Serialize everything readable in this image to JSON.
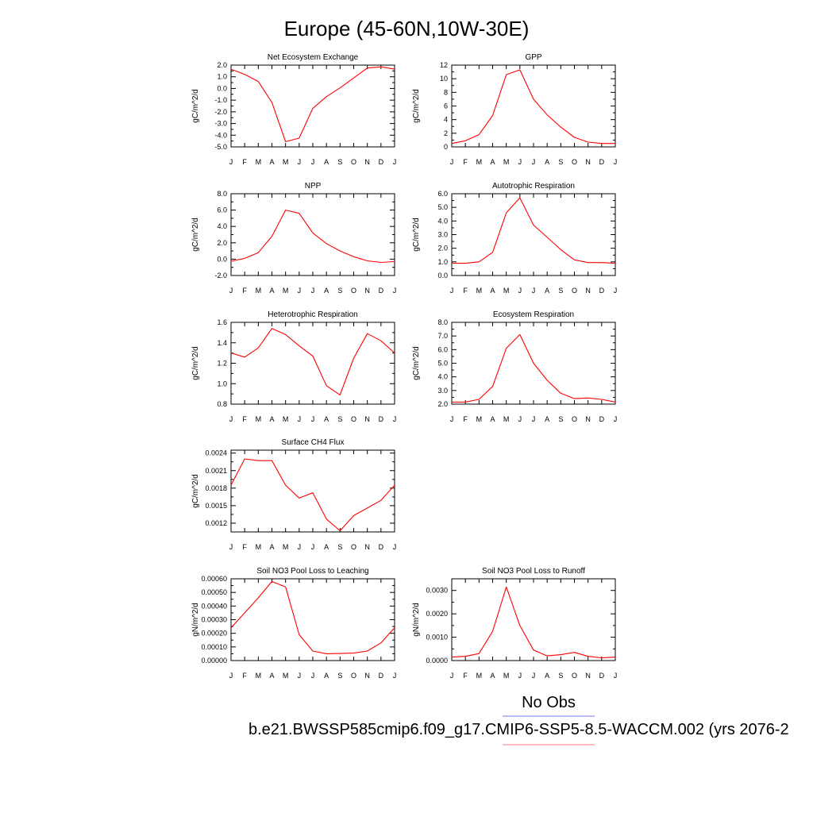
{
  "figure": {
    "title": "Europe (45-60N,10W-30E)",
    "legend": {
      "obs_label": "No Obs",
      "obs_color": "#7777ee",
      "model_label": "b.e21.BWSSP585cmip6.f09_g17.CMIP6-SSP5-8.5-WACCM.002 (yrs 2076-2",
      "model_color": "#ff7777"
    },
    "series_color": "#ff0000"
  },
  "chart_data": [
    {
      "type": "line",
      "title": "Net Ecosystem Exchange",
      "ylabel": "gC/m^2/d",
      "x": [
        "J",
        "F",
        "M",
        "A",
        "M",
        "J",
        "J",
        "A",
        "S",
        "O",
        "N",
        "D",
        "J"
      ],
      "ylim": [
        -5.0,
        2.0
      ],
      "yticks": [
        "2.0",
        "1.0",
        "0.0",
        "-1.0",
        "-2.0",
        "-3.0",
        "-4.0",
        "-5.0"
      ],
      "values": [
        1.65,
        1.2,
        0.6,
        -1.2,
        -4.55,
        -4.25,
        -1.7,
        -0.7,
        0.05,
        0.9,
        1.75,
        1.85,
        1.65
      ]
    },
    {
      "type": "line",
      "title": "GPP",
      "ylabel": "gC/m^2/d",
      "x": [
        "J",
        "F",
        "M",
        "A",
        "M",
        "J",
        "J",
        "A",
        "S",
        "O",
        "N",
        "D",
        "J"
      ],
      "ylim": [
        0,
        12
      ],
      "yticks": [
        "12",
        "10",
        "8",
        "6",
        "4",
        "2",
        "0"
      ],
      "values": [
        0.5,
        0.9,
        1.8,
        4.6,
        10.6,
        11.3,
        7.0,
        4.7,
        2.9,
        1.4,
        0.7,
        0.5,
        0.5
      ]
    },
    {
      "type": "line",
      "title": "NPP",
      "ylabel": "gC/m^2/d",
      "x": [
        "J",
        "F",
        "M",
        "A",
        "M",
        "J",
        "J",
        "A",
        "S",
        "O",
        "N",
        "D",
        "J"
      ],
      "ylim": [
        -2.0,
        8.0
      ],
      "yticks": [
        "8.0",
        "6.0",
        "4.0",
        "2.0",
        "0.0",
        "-2.0"
      ],
      "values": [
        -0.25,
        0.1,
        0.8,
        2.8,
        6.0,
        5.6,
        3.2,
        1.9,
        1.0,
        0.3,
        -0.2,
        -0.4,
        -0.3
      ]
    },
    {
      "type": "line",
      "title": "Autotrophic Respiration",
      "ylabel": "gC/m^2/d",
      "x": [
        "J",
        "F",
        "M",
        "A",
        "M",
        "J",
        "J",
        "A",
        "S",
        "O",
        "N",
        "D",
        "J"
      ],
      "ylim": [
        0.0,
        6.0
      ],
      "yticks": [
        "6.0",
        "5.0",
        "4.0",
        "3.0",
        "2.0",
        "1.0",
        "0.0"
      ],
      "values": [
        0.9,
        0.9,
        1.0,
        1.7,
        4.6,
        5.7,
        3.7,
        2.8,
        1.9,
        1.15,
        0.95,
        0.95,
        0.9
      ]
    },
    {
      "type": "line",
      "title": "Heterotrophic Respiration",
      "ylabel": "gC/m^2/d",
      "x": [
        "J",
        "F",
        "M",
        "A",
        "M",
        "J",
        "J",
        "A",
        "S",
        "O",
        "N",
        "D",
        "J"
      ],
      "ylim": [
        0.8,
        1.6
      ],
      "yticks": [
        "1.6",
        "1.4",
        "1.2",
        "1.0",
        "0.8"
      ],
      "values": [
        1.3,
        1.26,
        1.35,
        1.54,
        1.48,
        1.37,
        1.27,
        0.98,
        0.89,
        1.25,
        1.49,
        1.42,
        1.3
      ]
    },
    {
      "type": "line",
      "title": "Ecosystem Respiration",
      "ylabel": "gC/m^2/d",
      "x": [
        "J",
        "F",
        "M",
        "A",
        "M",
        "J",
        "J",
        "A",
        "S",
        "O",
        "N",
        "D",
        "J"
      ],
      "ylim": [
        2.0,
        8.0
      ],
      "yticks": [
        "8.0",
        "7.0",
        "6.0",
        "5.0",
        "4.0",
        "3.0",
        "2.0"
      ],
      "values": [
        2.15,
        2.15,
        2.35,
        3.3,
        6.1,
        7.1,
        5.0,
        3.75,
        2.8,
        2.4,
        2.45,
        2.35,
        2.15
      ]
    },
    {
      "type": "line",
      "title": "Surface CH4 Flux",
      "ylabel": "gC/m^2/d",
      "x": [
        "J",
        "F",
        "M",
        "A",
        "M",
        "J",
        "J",
        "A",
        "S",
        "O",
        "N",
        "D",
        "J"
      ],
      "ylim": [
        0.00105,
        0.00245
      ],
      "yticks": [
        "0.0024",
        "0.0021",
        "0.0018",
        "0.0015",
        "0.0012"
      ],
      "ytick_values": [
        0.0024,
        0.0021,
        0.0018,
        0.0015,
        0.0012
      ],
      "values": [
        0.00185,
        0.0023,
        0.00227,
        0.00227,
        0.00185,
        0.00163,
        0.00172,
        0.00127,
        0.00107,
        0.00133,
        0.00146,
        0.00159,
        0.00185
      ]
    },
    {
      "type": "line",
      "title": "Soil NO3 Pool Loss to Leaching",
      "ylabel": "gN/m^2/d",
      "x": [
        "J",
        "F",
        "M",
        "A",
        "M",
        "J",
        "J",
        "A",
        "S",
        "O",
        "N",
        "D",
        "J"
      ],
      "ylim": [
        0.0,
        0.0006
      ],
      "yticks": [
        "0.00060",
        "0.00050",
        "0.00040",
        "0.00030",
        "0.00020",
        "0.00010",
        "0.00000"
      ],
      "values": [
        0.00024,
        0.00035,
        0.00046,
        0.00058,
        0.00054,
        0.00019,
        7e-05,
        5e-05,
        5.2e-05,
        5.5e-05,
        7e-05,
        0.00013,
        0.00024
      ]
    },
    {
      "type": "line",
      "title": "Soil NO3 Pool Loss to Runoff",
      "ylabel": "gN/m^2/d",
      "x": [
        "J",
        "F",
        "M",
        "A",
        "M",
        "J",
        "J",
        "A",
        "S",
        "O",
        "N",
        "D",
        "J"
      ],
      "ylim": [
        0.0,
        0.0035
      ],
      "yticks": [
        "0.0030",
        "0.0020",
        "0.0010",
        "0.0000"
      ],
      "ytick_values": [
        0.003,
        0.002,
        0.001,
        0.0
      ],
      "values": [
        0.00015,
        0.00018,
        0.0003,
        0.00125,
        0.00315,
        0.0015,
        0.00045,
        0.0002,
        0.00025,
        0.00035,
        0.00018,
        0.00012,
        0.00015
      ]
    }
  ]
}
